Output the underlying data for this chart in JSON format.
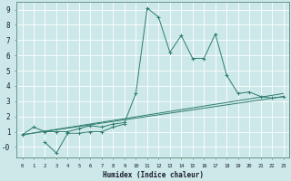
{
  "xlabel": "Humidex (Indice chaleur)",
  "xlim": [
    -0.5,
    23.5
  ],
  "ylim": [
    -0.7,
    9.5
  ],
  "yticks": [
    0,
    1,
    2,
    3,
    4,
    5,
    6,
    7,
    8,
    9
  ],
  "xticks": [
    0,
    1,
    2,
    3,
    4,
    5,
    6,
    7,
    8,
    9,
    10,
    11,
    12,
    13,
    14,
    15,
    16,
    17,
    18,
    19,
    20,
    21,
    22,
    23
  ],
  "background_color": "#cce8e8",
  "grid_color": "#ffffff",
  "line_color": "#2e7d6e",
  "line1_x": [
    0,
    1,
    2,
    3,
    4,
    5,
    6,
    7,
    8,
    9,
    10,
    11,
    12,
    13,
    14,
    15,
    16,
    17,
    18,
    19,
    20,
    21,
    22,
    23
  ],
  "line1_y": [
    0.8,
    1.3,
    1.0,
    1.0,
    1.0,
    1.2,
    1.4,
    1.3,
    1.5,
    1.6,
    3.5,
    9.1,
    8.5,
    6.2,
    7.3,
    5.8,
    5.8,
    7.4,
    4.7,
    3.5,
    3.6,
    3.3,
    3.2,
    3.3
  ],
  "line2_x": [
    0,
    23
  ],
  "line2_y": [
    0.8,
    3.3
  ],
  "line3_x": [
    0,
    23
  ],
  "line3_y": [
    0.8,
    3.5
  ],
  "line4_x": [
    2,
    3,
    4,
    5,
    6,
    7,
    8,
    9
  ],
  "line4_y": [
    0.3,
    -0.4,
    0.9,
    0.9,
    1.0,
    1.0,
    1.3,
    1.5
  ],
  "marker_x": [
    2,
    3,
    4,
    5,
    6,
    7,
    8
  ],
  "marker_y": [
    0.3,
    -0.4,
    0.9,
    0.9,
    1.0,
    1.0,
    1.3
  ]
}
